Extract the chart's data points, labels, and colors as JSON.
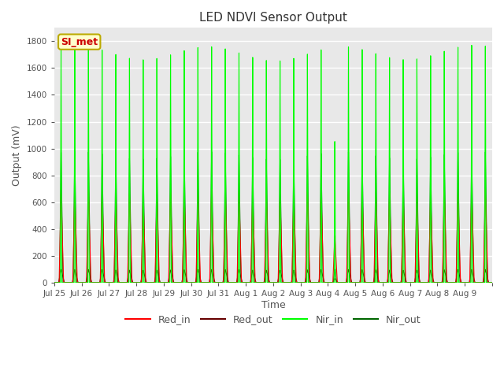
{
  "title": "LED NDVI Sensor Output",
  "xlabel": "Time",
  "ylabel": "Output (mV)",
  "ylim": [
    0,
    1900
  ],
  "yticks": [
    0,
    200,
    400,
    600,
    800,
    1000,
    1200,
    1400,
    1600,
    1800
  ],
  "num_days": 16,
  "red_in_peak": 680,
  "red_out_peak": 95,
  "nir_in_peak": 1720,
  "nir_out_peak": 950,
  "annotation_text": "SI_met",
  "annotation_bg": "#ffffcc",
  "annotation_fg": "#cc0000",
  "colors": {
    "red_in": "#ff0000",
    "red_out": "#660000",
    "nir_in": "#00ff00",
    "nir_out": "#006600"
  },
  "x_tick_labels": [
    "Jul 25",
    "Jul 26",
    "Jul 27",
    "Jul 28",
    "Jul 29",
    "Jul 30",
    "Jul 31",
    "Aug 1",
    "Aug 2",
    "Aug 3",
    "Aug 4",
    "Aug 5",
    "Aug 6",
    "Aug 7",
    "Aug 8",
    "Aug 9"
  ],
  "facecolor": "#e8e8e8"
}
